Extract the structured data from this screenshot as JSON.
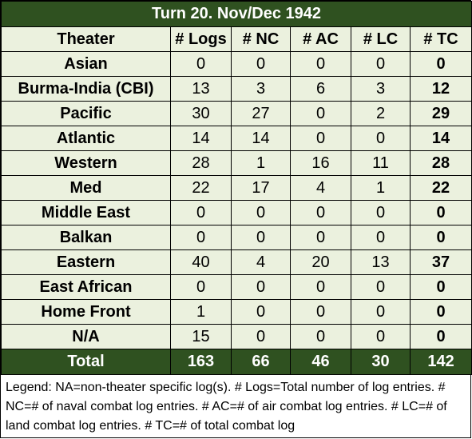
{
  "title": "Turn 20.  Nov/Dec 1942",
  "headers": [
    "Theater",
    "# Logs",
    "# NC",
    "# AC",
    "# LC",
    "# TC"
  ],
  "rows": [
    {
      "theater": "Asian",
      "logs": "0",
      "nc": "0",
      "ac": "0",
      "lc": "0",
      "tc": "0"
    },
    {
      "theater": "Burma-India (CBI)",
      "logs": "13",
      "nc": "3",
      "ac": "6",
      "lc": "3",
      "tc": "12"
    },
    {
      "theater": "Pacific",
      "logs": "30",
      "nc": "27",
      "ac": "0",
      "lc": "2",
      "tc": "29"
    },
    {
      "theater": "Atlantic",
      "logs": "14",
      "nc": "14",
      "ac": "0",
      "lc": "0",
      "tc": "14"
    },
    {
      "theater": "Western",
      "logs": "28",
      "nc": "1",
      "ac": "16",
      "lc": "11",
      "tc": "28"
    },
    {
      "theater": "Med",
      "logs": "22",
      "nc": "17",
      "ac": "4",
      "lc": "1",
      "tc": "22"
    },
    {
      "theater": "Middle East",
      "logs": "0",
      "nc": "0",
      "ac": "0",
      "lc": "0",
      "tc": "0"
    },
    {
      "theater": "Balkan",
      "logs": "0",
      "nc": "0",
      "ac": "0",
      "lc": "0",
      "tc": "0"
    },
    {
      "theater": "Eastern",
      "logs": "40",
      "nc": "4",
      "ac": "20",
      "lc": "13",
      "tc": "37"
    },
    {
      "theater": "East African",
      "logs": "0",
      "nc": "0",
      "ac": "0",
      "lc": "0",
      "tc": "0"
    },
    {
      "theater": "Home Front",
      "logs": "1",
      "nc": "0",
      "ac": "0",
      "lc": "0",
      "tc": "0"
    },
    {
      "theater": "N/A",
      "logs": "15",
      "nc": "0",
      "ac": "0",
      "lc": "0",
      "tc": "0"
    }
  ],
  "total": {
    "label": "Total",
    "logs": "163",
    "nc": "66",
    "ac": "46",
    "lc": "30",
    "tc": "142"
  },
  "legend": "Legend:  NA=non-theater specific log(s).  # Logs=Total number of log entries.  # NC=# of naval combat log entries.  # AC=# of air combat log entries.  # LC=# of land combat log entries.  # TC=# of total combat log",
  "colors": {
    "header_dark_green": "#2f5120",
    "row_light_green": "#ebf1de"
  }
}
